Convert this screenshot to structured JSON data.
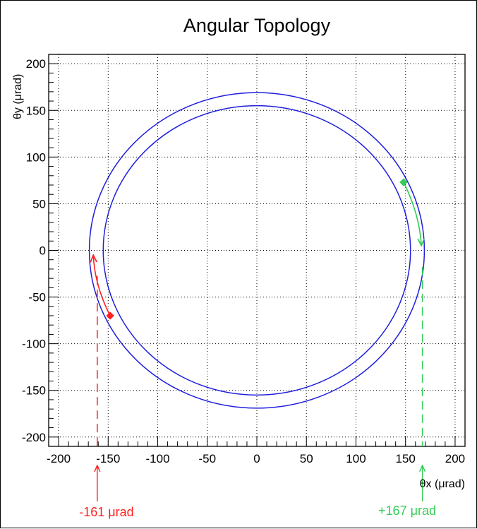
{
  "chart_data": {
    "type": "line",
    "title": "Angular Topology",
    "xlabel": "θx (μrad)",
    "ylabel": "θy (μrad)",
    "xlim": [
      -210,
      210
    ],
    "ylim": [
      -210,
      210
    ],
    "x_ticks": [
      -200,
      -150,
      -100,
      -50,
      0,
      50,
      100,
      150,
      200
    ],
    "y_ticks": [
      200,
      150,
      100,
      50,
      0,
      -50,
      -100,
      -150,
      -200
    ],
    "grid": true,
    "colors": {
      "rings": "#1f1fdd",
      "left": "#ff2020",
      "right": "#33cc55"
    },
    "series": [
      {
        "kind": "circle",
        "center": [
          0,
          0
        ],
        "radius": 169
      },
      {
        "kind": "circle",
        "center": [
          0,
          0
        ],
        "radius": 155
      }
    ],
    "markers": [
      {
        "name": "left",
        "point": [
          -148,
          -70
        ],
        "arc_to": [
          -165,
          -5
        ],
        "limit_x": -161
      },
      {
        "name": "right",
        "point": [
          148,
          73
        ],
        "arc_to": [
          166,
          5
        ],
        "limit_x": 167
      }
    ],
    "annotations": [
      {
        "text": "-161 μrad",
        "target": "left"
      },
      {
        "text": "+167 μrad",
        "target": "right"
      }
    ]
  }
}
